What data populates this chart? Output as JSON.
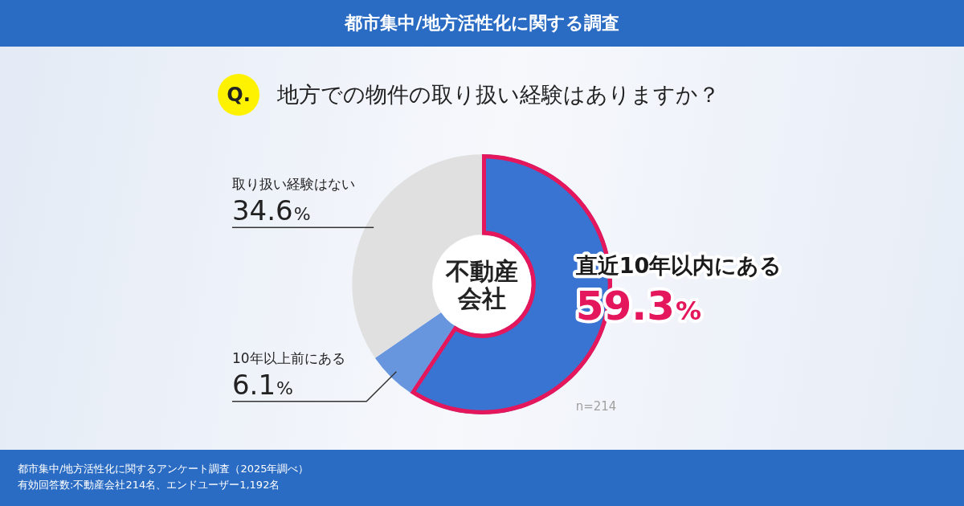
{
  "chart_data": {
    "type": "donut",
    "title": "都市集中/地方活性化に関する調査",
    "subtitle": "地方での物件の取り扱い経験はありますか？",
    "categories": [
      "直近10年以内にある",
      "10年以上前にある",
      "取り扱い経験はない"
    ],
    "values": [
      59.3,
      6.1,
      34.6
    ],
    "colors": [
      "#3a74d2",
      "#6796de",
      "#e0e0e0"
    ],
    "value_labels": [
      "59.3%",
      "6.1%",
      "34.6%"
    ],
    "annotations": [
      "Q.",
      "不動産会社",
      "n=214",
      "都市集中/地方活性化に関するアンケート調査（2025年調べ）",
      "有効回答数:不動産会社214名、エンドユーザー1,192名"
    ]
  }
}
